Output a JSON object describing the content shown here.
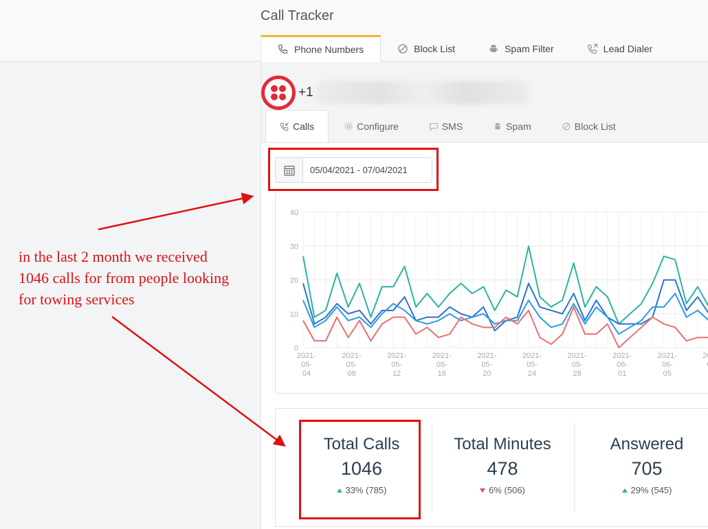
{
  "app": {
    "title": "Call Tracker"
  },
  "top_tabs": [
    {
      "label": "Phone Numbers",
      "icon": "phone-icon",
      "active": true
    },
    {
      "label": "Block List",
      "icon": "block-icon",
      "active": false
    },
    {
      "label": "Spam Filter",
      "icon": "android-icon",
      "active": false
    },
    {
      "label": "Lead Dialer",
      "icon": "phone-outgoing-icon",
      "active": false
    }
  ],
  "phone": {
    "prefix": "+1",
    "logo": "twilio-logo"
  },
  "sub_tabs": [
    {
      "label": "Calls",
      "icon": "phone-incoming-icon",
      "active": true
    },
    {
      "label": "Configure",
      "icon": "gear-icon",
      "active": false
    },
    {
      "label": "SMS",
      "icon": "chat-icon",
      "active": false
    },
    {
      "label": "Spam",
      "icon": "android-icon",
      "active": false
    },
    {
      "label": "Block List",
      "icon": "block-icon",
      "active": false
    }
  ],
  "date_range": {
    "value": "05/04/2021 - 07/04/2021"
  },
  "chart_data": {
    "type": "line",
    "ylim": [
      0,
      40
    ],
    "yticks": [
      0,
      10,
      20,
      30,
      40
    ],
    "xtick_labels": [
      [
        "2021-",
        "05-",
        "04"
      ],
      [
        "2021-",
        "05-",
        "08"
      ],
      [
        "2021-",
        "05-",
        "12"
      ],
      [
        "2021-",
        "05-",
        "16"
      ],
      [
        "2021-",
        "05-",
        "20"
      ],
      [
        "2021-",
        "05-",
        "24"
      ],
      [
        "2021-",
        "05-",
        "28"
      ],
      [
        "2021-",
        "06-",
        "01"
      ],
      [
        "2021-",
        "06-",
        "05"
      ],
      [
        "2021-",
        "06-",
        "0"
      ]
    ],
    "series": [
      {
        "color": "#2ab3a0",
        "values": [
          27,
          9,
          11,
          22,
          12,
          19,
          9,
          18,
          18,
          24,
          12,
          16,
          12,
          16,
          19,
          16,
          18,
          11,
          17,
          15,
          30,
          15,
          12,
          14,
          25,
          12,
          18,
          15,
          7,
          10,
          13,
          19,
          27,
          26,
          13,
          18,
          12
        ]
      },
      {
        "color": "#2a72cf",
        "values": [
          19,
          7,
          9,
          13,
          10,
          11,
          7,
          11,
          11,
          15,
          8,
          9,
          9,
          12,
          10,
          9,
          12,
          5,
          8,
          9,
          19,
          12,
          11,
          10,
          16,
          8,
          14,
          9,
          7,
          7,
          7,
          9,
          20,
          20,
          11,
          15,
          10
        ]
      },
      {
        "color": "#2b9ae3",
        "values": [
          14,
          6,
          8,
          12,
          8,
          9,
          6,
          10,
          13,
          11,
          8,
          7,
          8,
          10,
          8,
          9,
          10,
          7,
          8,
          8,
          14,
          9,
          6,
          7,
          13,
          7,
          12,
          9,
          4,
          6,
          8,
          12,
          12,
          16,
          9,
          11,
          8
        ]
      },
      {
        "color": "#ec6d73",
        "values": [
          8,
          2,
          2,
          9,
          3,
          8,
          2,
          7,
          9,
          9,
          4,
          6,
          3,
          4,
          9,
          7,
          6,
          6,
          9,
          7,
          11,
          3,
          1,
          4,
          12,
          4,
          4,
          7,
          0,
          3,
          6,
          9,
          7,
          6,
          2,
          3,
          3
        ]
      }
    ]
  },
  "stats": [
    {
      "label": "Total Calls",
      "value": "1046",
      "delta": "33% (785)",
      "trend": "up"
    },
    {
      "label": "Total Minutes",
      "value": "478",
      "delta": "6% (506)",
      "trend": "down"
    },
    {
      "label": "Answered",
      "value": "705",
      "delta": "29% (545)",
      "trend": "up"
    }
  ],
  "annotation": {
    "lines": [
      "in the last 2 month we received",
      "1046 calls for from people looking",
      "for towing services"
    ],
    "color": "#e01010"
  }
}
